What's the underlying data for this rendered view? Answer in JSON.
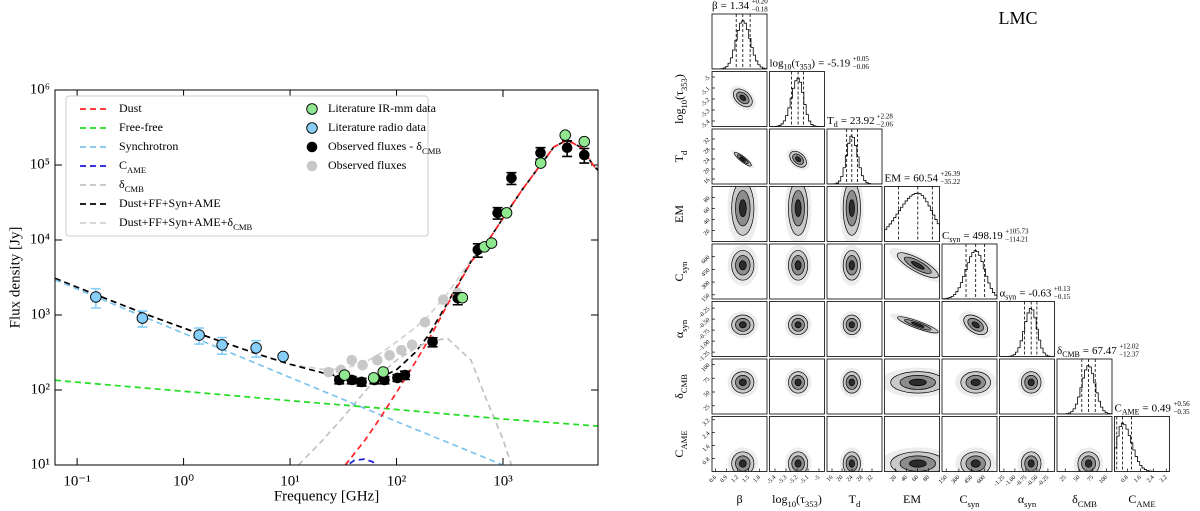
{
  "chart_data": [
    {
      "type": "line",
      "xlabel": "Frequency [GHz]",
      "ylabel": "Flux density [Jy]",
      "xscale": "log",
      "yscale": "log",
      "xlim": [
        0.062,
        7800
      ],
      "ylim": [
        10,
        1000000
      ],
      "xticks": [
        {
          "value": 0.1,
          "label": "10⁻¹"
        },
        {
          "value": 1,
          "label": "10⁰"
        },
        {
          "value": 10,
          "label": "10¹"
        },
        {
          "value": 100,
          "label": "10²"
        },
        {
          "value": 1000,
          "label": "10³"
        }
      ],
      "yticks": [
        {
          "value": 10,
          "label": "10¹"
        },
        {
          "value": 100,
          "label": "10²"
        },
        {
          "value": 1000,
          "label": "10³"
        },
        {
          "value": 10000,
          "label": "10⁴"
        },
        {
          "value": 100000,
          "label": "10⁵"
        },
        {
          "value": 1000000,
          "label": "10⁶"
        }
      ],
      "grid": false,
      "legend": "upper left",
      "series": [
        {
          "name": [
            "Dust"
          ],
          "style": "dashed",
          "color": "#ff2222",
          "x": [
            33,
            50,
            70,
            100,
            150,
            200,
            300,
            500,
            700,
            1000,
            1500,
            2000,
            3000,
            4000,
            5500,
            7000,
            7800
          ],
          "values": [
            10,
            21,
            42,
            93,
            235,
            465,
            1360,
            5100,
            9000,
            19500,
            46000,
            80000,
            174000,
            215000,
            170000,
            100000,
            85000
          ]
        },
        {
          "name": [
            "Free-free"
          ],
          "style": "dashed",
          "color": "#22dd22",
          "x": [
            0.062,
            0.1,
            1,
            10,
            100,
            1000,
            7800
          ],
          "values": [
            135,
            127,
            96,
            72,
            55,
            41,
            33
          ]
        },
        {
          "name": [
            "Synchrotron"
          ],
          "style": "dashed",
          "color": "#7fc4ec",
          "x": [
            0.062,
            0.1,
            1,
            10,
            100,
            1000
          ],
          "values": [
            2950,
            2220,
            570,
            147,
            38,
            10
          ]
        },
        {
          "name": [
            "C",
            "AME"
          ],
          "style": "dashed",
          "color": "#1a1ad8",
          "x": [
            25,
            33,
            40,
            50,
            60,
            70
          ],
          "values": [
            5,
            9.5,
            11.5,
            12,
            11,
            8
          ]
        },
        {
          "name": [
            "δ",
            "CMB"
          ],
          "style": "dashed",
          "color": "#c2c2c2",
          "x": [
            12,
            20,
            30,
            50,
            70,
            100,
            150,
            200,
            300,
            500,
            700,
            1000,
            1200
          ],
          "values": [
            10,
            21,
            40,
            94,
            160,
            250,
            360,
            440,
            490,
            250,
            74,
            22,
            10
          ]
        },
        {
          "name": [
            "Dust+FF+Syn+AME"
          ],
          "style": "dashed",
          "color": "#000000",
          "x": [
            0.062,
            0.1,
            0.2,
            0.5,
            1,
            2,
            5,
            10,
            20,
            30,
            50,
            70,
            100,
            150,
            200,
            300,
            500,
            700,
            1000,
            1500,
            2000,
            3000,
            4000,
            5500,
            7000,
            7800
          ],
          "values": [
            3085,
            2350,
            1590,
            960,
            670,
            470,
            300,
            220,
            170,
            150,
            140,
            146,
            186,
            317,
            540,
            1430,
            5160,
            9050,
            19550,
            46000,
            80000,
            174000,
            215000,
            170000,
            100000,
            85000
          ]
        },
        {
          "name": [
            "Dust+FF+Syn+AME+δ",
            "CMB"
          ],
          "style": "dashed",
          "color": "#d2d2d2",
          "x": [
            0.062,
            0.1,
            0.2,
            0.5,
            1,
            2,
            5,
            10,
            20,
            30,
            50,
            70,
            100,
            150,
            200,
            300,
            500,
            700,
            1000,
            1500,
            2000,
            3000,
            4000,
            5500,
            7000,
            7800
          ],
          "values": [
            3085,
            2350,
            1590,
            960,
            670,
            470,
            300,
            220,
            190,
            188,
            232,
            306,
            436,
            677,
            980,
            1920,
            5410,
            9130,
            19570,
            46000,
            80000,
            174000,
            215000,
            170000,
            100000,
            85000
          ]
        },
        {
          "name": [
            "Literature IR-mm data"
          ],
          "style": "marker",
          "color": "#8fe88f",
          "edgecolor": "#000000",
          "x": [
            32.5,
            61,
            75,
            415,
            670,
            780,
            1080,
            2260,
            3840,
            5800
          ],
          "values": [
            158,
            145,
            174,
            1700,
            8100,
            9100,
            23000,
            106000,
            250000,
            205000
          ]
        },
        {
          "name": [
            "Literature radio data"
          ],
          "style": "marker",
          "color": "#87cefa",
          "edgecolor": "#000000",
          "x": [
            0.15,
            0.41,
            1.4,
            2.3,
            4.8,
            8.6
          ],
          "values": [
            1740,
            910,
            540,
            400,
            365,
            280
          ],
          "errors": [
            500,
            220,
            130,
            100,
            90,
            null
          ]
        },
        {
          "name": [
            "Observed fluxes - δ",
            "CMB"
          ],
          "style": "marker",
          "color": "#000000",
          "x": [
            29,
            38,
            47,
            62,
            77,
            102,
            120,
            218,
            376,
            580,
            890,
            1200,
            2250,
            4000,
            5800
          ],
          "values": [
            136,
            136,
            128,
            136,
            136,
            145,
            158,
            437,
            1670,
            7400,
            23000,
            67000,
            145000,
            170000,
            136000
          ],
          "errors": [
            15,
            15,
            15,
            15,
            15,
            15,
            20,
            60,
            300,
            1500,
            4000,
            12000,
            25000,
            40000,
            30000
          ]
        },
        {
          "name": [
            "Observed fluxes"
          ],
          "style": "marker",
          "color": "#c8c8c8",
          "x": [
            23,
            30,
            38,
            48,
            66,
            86,
            111,
            140,
            185,
            275,
            375
          ],
          "values": [
            173,
            185,
            250,
            215,
            250,
            290,
            340,
            400,
            800,
            1600,
            1960
          ]
        }
      ]
    },
    {
      "type": "corner",
      "title": "LMC",
      "equals": "=",
      "params": [
        {
          "label": [
            "β"
          ],
          "median": 1.34,
          "plus": {
            "value": 0.2,
            "label": "+0.20"
          },
          "minus": {
            "value": -0.18,
            "label": "−0.18"
          },
          "lim": [
            0.5,
            2.0
          ],
          "ticks": [
            0.6,
            0.9,
            1.2,
            1.5,
            1.8
          ]
        },
        {
          "label": [
            "log",
            "10",
            "(τ",
            "353",
            ")"
          ],
          "median": -5.19,
          "plus": {
            "value": 0.05,
            "label": "+0.05"
          },
          "minus": {
            "value": -0.06,
            "label": "−0.06"
          },
          "lim": [
            -5.45,
            -4.95
          ],
          "ticks": [
            -5.4,
            -5.3,
            -5.2,
            -5.1,
            -5.0
          ]
        },
        {
          "label": [
            "T",
            "d"
          ],
          "median": 23.92,
          "plus": {
            "value": 2.28,
            "label": "+2.28"
          },
          "minus": {
            "value": -2.06,
            "label": "−2.06"
          },
          "lim": [
            14,
            36
          ],
          "ticks": [
            16,
            20,
            24,
            28,
            32
          ]
        },
        {
          "label": [
            "EM"
          ],
          "median": 60.54,
          "plus": {
            "value": 26.39,
            "label": "+26.39"
          },
          "minus": {
            "value": -35.22,
            "label": "−35.22"
          },
          "lim": [
            0,
            100
          ],
          "ticks": [
            20,
            40,
            60,
            80
          ]
        },
        {
          "label": [
            "C",
            "syn"
          ],
          "median": 498.19,
          "plus": {
            "value": 105.73,
            "label": "+105.73"
          },
          "minus": {
            "value": -114.21,
            "label": "−114.21"
          },
          "lim": [
            100,
            750
          ],
          "ticks": [
            150,
            300,
            450,
            600
          ]
        },
        {
          "label": [
            "α",
            "syn"
          ],
          "median": -0.63,
          "plus": {
            "value": 0.13,
            "label": "+0.13"
          },
          "minus": {
            "value": -0.15,
            "label": "−0.15"
          },
          "lim": [
            -1.35,
            -0.1
          ],
          "ticks": [
            -1.25,
            {
              "value": -1,
              "label": "-1.00"
            },
            -0.75,
            {
              "value": -0.5,
              "label": "-0.50"
            },
            -0.25
          ]
        },
        {
          "label": [
            "δ",
            "CMB"
          ],
          "median": 67.47,
          "plus": {
            "value": 12.02,
            "label": "+12.02"
          },
          "minus": {
            "value": -12.37,
            "label": "−12.37"
          },
          "lim": [
            10,
            110
          ],
          "ticks": [
            25,
            50,
            75,
            100
          ]
        },
        {
          "label": [
            "C",
            "AME"
          ],
          "median": 0.49,
          "plus": {
            "value": 0.56,
            "label": "+0.56"
          },
          "minus": {
            "value": -0.35,
            "label": "−0.35"
          },
          "lim": [
            0,
            3.4
          ],
          "ticks": [
            0.8,
            1.6,
            2.4,
            3.2
          ]
        }
      ]
    }
  ]
}
